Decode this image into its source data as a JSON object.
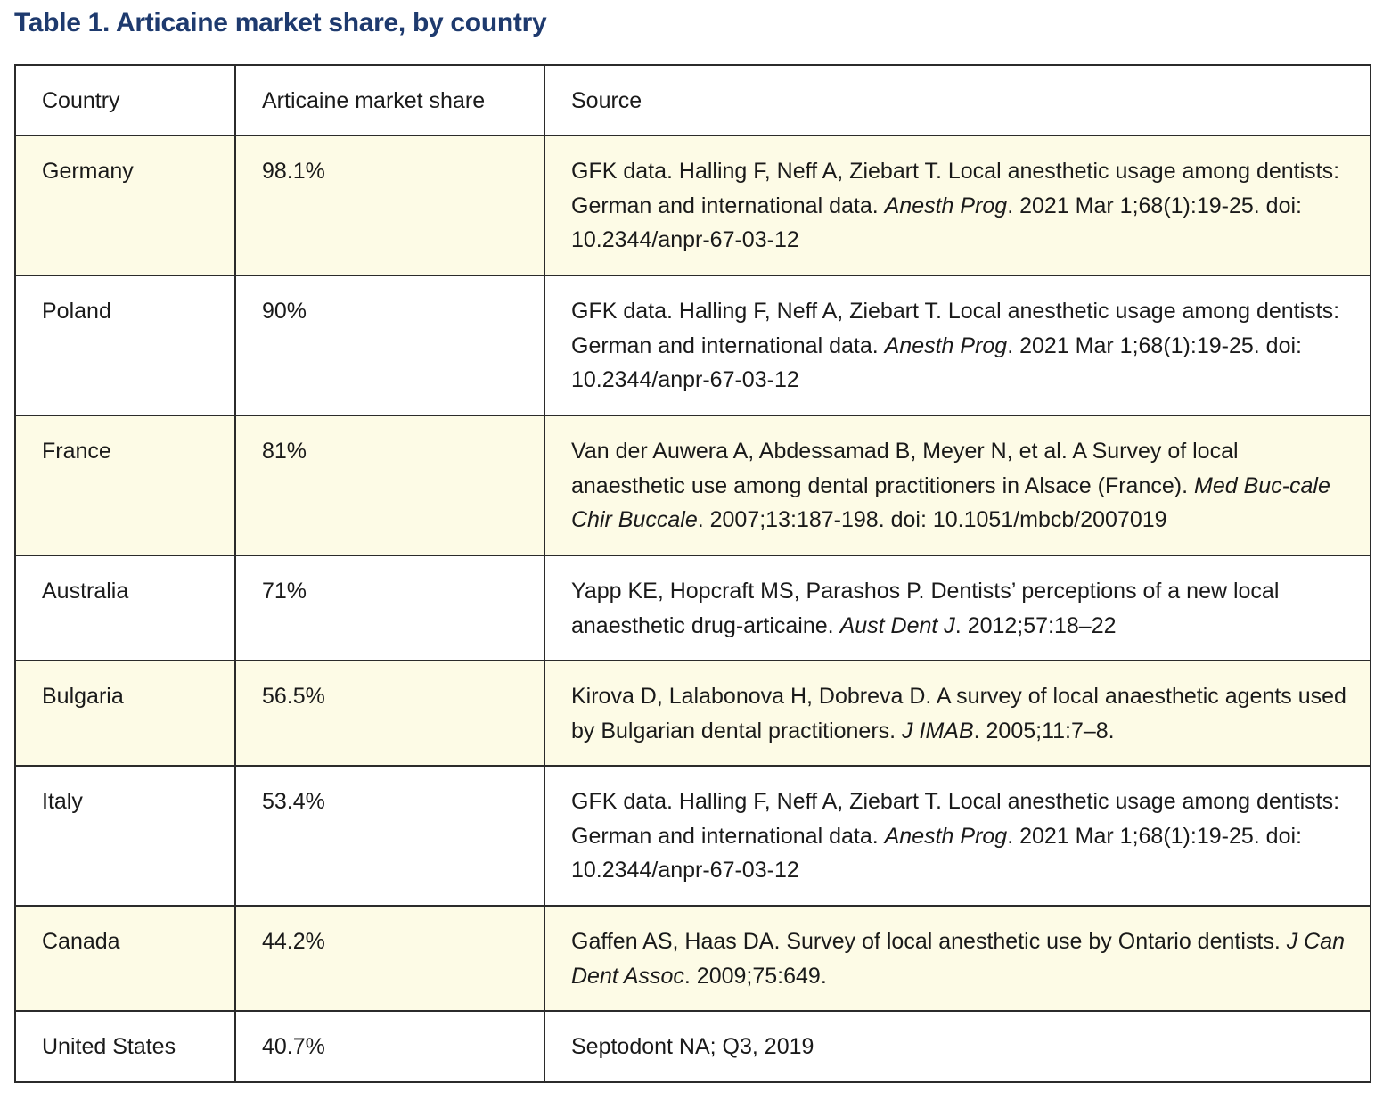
{
  "title": "Table 1. Articaine market share, by country",
  "columns": [
    "Country",
    "Articaine market share",
    "Source"
  ],
  "rows": [
    {
      "country": "Germany",
      "share": "98.1%",
      "source_pre": "GFK data. Halling F, Neff A, Ziebart T. Local anesthetic usage among dentists: German and international data. ",
      "source_journal": "Anesth Prog",
      "source_post": ". 2021 Mar 1;68(1):19-25. doi: 10.2344/anpr-67-03-12"
    },
    {
      "country": "Poland",
      "share": "90%",
      "source_pre": "GFK data. Halling F, Neff A, Ziebart T. Local anesthetic usage among dentists: German and international data. ",
      "source_journal": "Anesth Prog",
      "source_post": ". 2021 Mar 1;68(1):19-25. doi: 10.2344/anpr-67-03-12"
    },
    {
      "country": "France",
      "share": "81%",
      "source_pre": "Van der Auwera A, Abdessamad B, Meyer N, et al. A Survey of local anaesthetic use among dental practitioners in Alsace (France). ",
      "source_journal": "Med Buc-cale Chir Buccale",
      "source_post": ". 2007;13:187-198. doi: 10.1051/mbcb/2007019"
    },
    {
      "country": "Australia",
      "share": "71%",
      "source_pre": "Yapp KE, Hopcraft MS, Parashos P. Dentists’ perceptions of a new local anaesthetic drug-articaine. ",
      "source_journal": "Aust Dent J",
      "source_post": ". 2012;57:18–22"
    },
    {
      "country": "Bulgaria",
      "share": "56.5%",
      "source_pre": "Kirova D, Lalabonova H, Dobreva D. A survey of local anaesthetic agents used by Bulgarian dental practitioners. ",
      "source_journal": "J IMAB",
      "source_post": ". 2005;11:7–8."
    },
    {
      "country": "Italy",
      "share": "53.4%",
      "source_pre": "GFK data. Halling F, Neff A, Ziebart T. Local anesthetic usage among dentists: German and international data. ",
      "source_journal": "Anesth Prog",
      "source_post": ". 2021 Mar 1;68(1):19-25. doi: 10.2344/anpr-67-03-12"
    },
    {
      "country": "Canada",
      "share": "44.2%",
      "source_pre": "Gaffen AS, Haas DA. Survey of local anesthetic use by Ontario dentists. ",
      "source_journal": "J Can Dent Assoc",
      "source_post": ". 2009;75:649."
    },
    {
      "country": "United States",
      "share": "40.7%",
      "source_pre": "Septodont NA; Q3, 2019",
      "source_journal": "",
      "source_post": ""
    }
  ]
}
